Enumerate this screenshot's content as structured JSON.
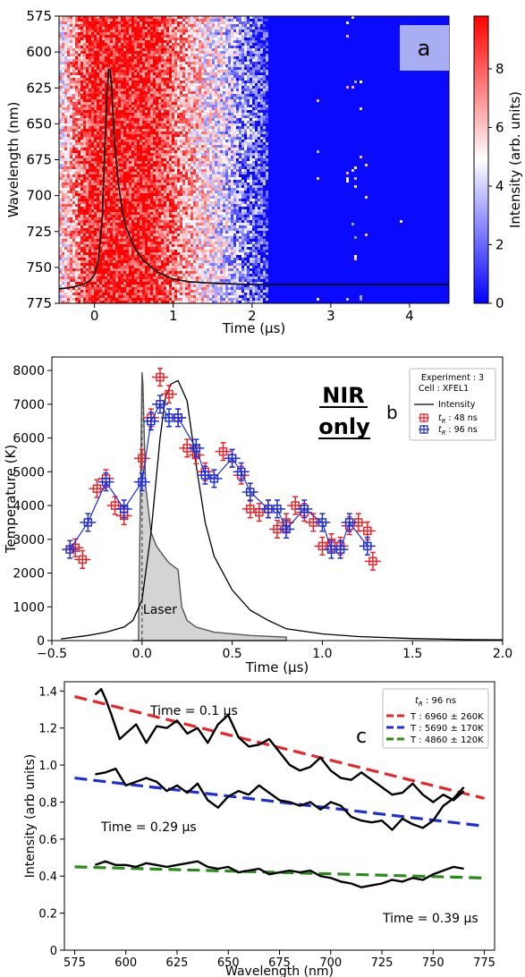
{
  "chart_data": [
    {
      "panel": "a",
      "type": "heatmap",
      "panel_label": "a",
      "xlabel": "Time (μs)",
      "ylabel": "Wavelength (nm)",
      "colorbar_label": "Intensity (arb. units)",
      "xlim": [
        -0.45,
        4.5
      ],
      "ylim": [
        775,
        575
      ],
      "xticks": [
        0,
        1,
        2,
        3,
        4
      ],
      "yticks": [
        575,
        600,
        625,
        650,
        675,
        700,
        725,
        750,
        775
      ],
      "colorbar_ticks": [
        0,
        2,
        4,
        6,
        8
      ],
      "colorbar_range": [
        0,
        9.8
      ],
      "colormap": [
        "#0000ff",
        "#ffffff",
        "#ff0000"
      ],
      "intensity_profile": {
        "name": "Intensity",
        "x": [
          -0.45,
          -0.3,
          -0.15,
          -0.05,
          0.0,
          0.05,
          0.1,
          0.13,
          0.16,
          0.18,
          0.2,
          0.22,
          0.25,
          0.3,
          0.35,
          0.4,
          0.5,
          0.6,
          0.7,
          0.8,
          0.9,
          1.0,
          1.2,
          1.5,
          2.0,
          3.0,
          4.5
        ],
        "y": [
          765,
          764,
          762,
          759,
          755,
          745,
          715,
          668,
          628,
          612,
          613,
          625,
          660,
          690,
          710,
          722,
          735,
          744,
          749,
          753,
          756,
          758,
          760,
          761,
          762,
          762,
          762
        ]
      }
    },
    {
      "panel": "b",
      "type": "line",
      "panel_label": "b",
      "annotation": [
        "NIR",
        "only"
      ],
      "xlabel": "Time (μs)",
      "ylabel": "Temperature (K)",
      "xlim": [
        -0.5,
        2.0
      ],
      "ylim": [
        0,
        8400
      ],
      "xticks": [
        -0.5,
        0.0,
        0.5,
        1.0,
        1.5,
        2.0
      ],
      "xtick_labels": [
        "−0.5",
        "0.0",
        "0.5",
        "1.0",
        "1.5",
        "2.0"
      ],
      "yticks": [
        0,
        1000,
        2000,
        3000,
        4000,
        5000,
        6000,
        7000,
        8000
      ],
      "legend": {
        "title": [
          "Experiment : 3",
          "Cell : XFEL1"
        ],
        "entries": [
          "Intensity",
          "t_R : 48 ns",
          "t_R : 96 ns"
        ],
        "placement": "top-right"
      },
      "laser_label": "Laser",
      "series": [
        {
          "name": "t_R : 48 ns",
          "color": "#e8262a",
          "x": [
            -0.37,
            -0.33,
            -0.25,
            -0.2,
            -0.15,
            -0.1,
            0.0,
            0.05,
            0.1,
            0.15,
            0.2,
            0.25,
            0.3,
            0.35,
            0.45,
            0.5,
            0.55,
            0.6,
            0.65,
            0.7,
            0.75,
            0.8,
            0.85,
            0.9,
            0.95,
            1.0,
            1.05,
            1.1,
            1.15,
            1.2,
            1.25,
            1.28
          ],
          "y": [
            2750,
            2400,
            4500,
            4800,
            4000,
            3700,
            5400,
            6600,
            7800,
            7300,
            6600,
            5700,
            5500,
            5000,
            5600,
            5400,
            4900,
            3900,
            3800,
            3900,
            3300,
            3500,
            4000,
            3800,
            3500,
            2800,
            2900,
            2800,
            3400,
            3500,
            3250,
            2350
          ],
          "yerr": 260
        },
        {
          "name": "t_R : 96 ns",
          "color": "#1f2fd8",
          "x": [
            -0.4,
            -0.3,
            -0.2,
            -0.1,
            0.0,
            0.05,
            0.1,
            0.15,
            0.2,
            0.3,
            0.35,
            0.4,
            0.5,
            0.55,
            0.6,
            0.7,
            0.75,
            0.8,
            0.9,
            1.0,
            1.05,
            1.1,
            1.15,
            1.25
          ],
          "y": [
            2700,
            3500,
            4700,
            3900,
            4700,
            6500,
            7000,
            6600,
            6600,
            5700,
            4900,
            4800,
            5400,
            5000,
            4400,
            3900,
            3900,
            3300,
            3900,
            3500,
            2700,
            2700,
            3500,
            2800
          ],
          "yerr": 260
        }
      ],
      "intensity_curve": {
        "name": "Intensity",
        "x": [
          -0.45,
          -0.3,
          -0.2,
          -0.1,
          -0.05,
          0.0,
          0.05,
          0.1,
          0.13,
          0.16,
          0.2,
          0.25,
          0.3,
          0.35,
          0.4,
          0.5,
          0.6,
          0.7,
          0.8,
          1.0,
          1.2,
          1.5,
          1.8,
          2.0
        ],
        "y": [
          50,
          150,
          250,
          400,
          600,
          1200,
          3200,
          6000,
          7200,
          7600,
          7700,
          7100,
          5200,
          3500,
          2500,
          1500,
          900,
          600,
          350,
          200,
          120,
          60,
          30,
          20
        ]
      },
      "laser_profile": {
        "name": "Laser",
        "x": [
          -0.05,
          -0.02,
          0.0,
          0.005,
          0.02,
          0.05,
          0.08,
          0.12,
          0.15,
          0.2,
          0.22,
          0.25,
          0.3,
          0.4,
          0.6,
          0.8
        ],
        "y": [
          0,
          0,
          7950,
          7600,
          4600,
          3200,
          2800,
          2500,
          2300,
          2100,
          1000,
          600,
          400,
          250,
          150,
          100
        ]
      }
    },
    {
      "panel": "c",
      "type": "line",
      "panel_label": "c",
      "xlabel": "Wavelength (nm)",
      "ylabel": "Intensity (arb units)",
      "xlim": [
        570,
        780
      ],
      "ylim": [
        0,
        1.45
      ],
      "xticks": [
        575,
        600,
        625,
        650,
        675,
        700,
        725,
        750,
        775
      ],
      "yticks": [
        0,
        0.2,
        0.4,
        0.6,
        0.8,
        1.0,
        1.2,
        1.4
      ],
      "ytick_labels": [
        "0",
        "0.2",
        "0.4",
        "0.6",
        "0.8",
        "1.0",
        "1.2",
        "1.4"
      ],
      "legend": {
        "title": "t_R : 96 ns",
        "entries": [
          "T : 6960 ± 260K",
          "T : 5690 ± 170K",
          "T : 4860 ± 120K"
        ],
        "placement": "top-right"
      },
      "annotations": [
        "Time = 0.1 μs",
        "Time = 0.29 μs",
        "Time = 0.39 μs"
      ],
      "fits": [
        {
          "name": "T : 6960 ± 260K",
          "color": "#e8262a",
          "x": [
            575,
            775
          ],
          "y": [
            1.37,
            0.82
          ]
        },
        {
          "name": "T : 5690 ± 170K",
          "color": "#1f2fd8",
          "x": [
            575,
            775
          ],
          "y": [
            0.93,
            0.67
          ]
        },
        {
          "name": "T : 4860 ± 120K",
          "color": "#2a8a1a",
          "x": [
            575,
            775
          ],
          "y": [
            0.45,
            0.39
          ]
        }
      ],
      "spectra": [
        {
          "name": "Time = 0.1 μs",
          "x": [
            585,
            588,
            590,
            593,
            597,
            600,
            605,
            610,
            615,
            620,
            625,
            630,
            635,
            640,
            645,
            650,
            655,
            660,
            665,
            670,
            675,
            680,
            685,
            690,
            695,
            700,
            705,
            710,
            715,
            720,
            725,
            730,
            735,
            740,
            745,
            750,
            755,
            760,
            765
          ],
          "y": [
            1.38,
            1.41,
            1.36,
            1.27,
            1.14,
            1.17,
            1.22,
            1.12,
            1.21,
            1.2,
            1.24,
            1.17,
            1.2,
            1.12,
            1.22,
            1.27,
            1.15,
            1.1,
            1.11,
            1.14,
            1.07,
            1.0,
            0.97,
            0.99,
            1.04,
            0.97,
            0.93,
            0.92,
            0.96,
            0.92,
            0.88,
            0.84,
            0.85,
            0.9,
            0.84,
            0.8,
            0.84,
            0.81,
            0.86
          ]
        },
        {
          "name": "Time = 0.29 μs",
          "x": [
            585,
            590,
            595,
            600,
            605,
            610,
            615,
            620,
            625,
            630,
            635,
            640,
            645,
            650,
            655,
            660,
            665,
            670,
            675,
            680,
            685,
            690,
            695,
            700,
            705,
            710,
            715,
            720,
            725,
            730,
            735,
            740,
            745,
            750,
            755,
            760,
            765
          ],
          "y": [
            0.95,
            0.96,
            0.98,
            0.89,
            0.91,
            0.93,
            0.91,
            0.86,
            0.89,
            0.85,
            0.9,
            0.81,
            0.77,
            0.83,
            0.86,
            0.84,
            0.89,
            0.85,
            0.81,
            0.8,
            0.78,
            0.8,
            0.76,
            0.8,
            0.78,
            0.72,
            0.7,
            0.69,
            0.7,
            0.65,
            0.71,
            0.68,
            0.66,
            0.7,
            0.78,
            0.82,
            0.88
          ]
        },
        {
          "name": "Time = 0.39 μs",
          "x": [
            585,
            590,
            595,
            600,
            605,
            610,
            615,
            620,
            625,
            630,
            635,
            640,
            645,
            650,
            655,
            660,
            665,
            670,
            675,
            680,
            685,
            690,
            695,
            700,
            705,
            710,
            715,
            720,
            725,
            730,
            735,
            740,
            745,
            750,
            755,
            760,
            765
          ],
          "y": [
            0.46,
            0.48,
            0.46,
            0.46,
            0.45,
            0.47,
            0.46,
            0.45,
            0.46,
            0.47,
            0.48,
            0.45,
            0.44,
            0.45,
            0.42,
            0.43,
            0.44,
            0.41,
            0.42,
            0.43,
            0.42,
            0.43,
            0.4,
            0.39,
            0.37,
            0.36,
            0.34,
            0.35,
            0.36,
            0.38,
            0.37,
            0.39,
            0.38,
            0.41,
            0.43,
            0.45,
            0.44
          ]
        }
      ]
    }
  ]
}
